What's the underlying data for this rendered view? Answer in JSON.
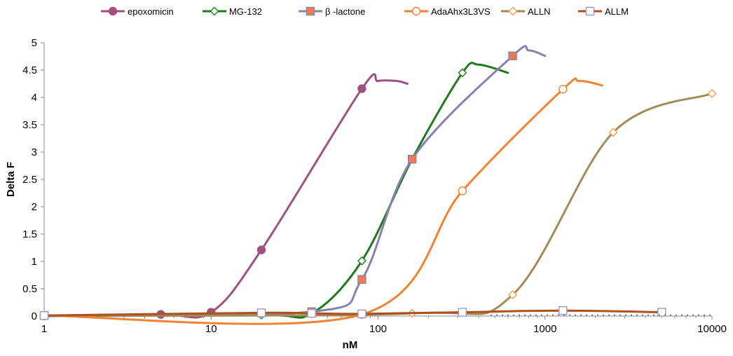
{
  "chart_data": {
    "type": "line",
    "title": "",
    "xlabel": "nM",
    "ylabel": "Delta F",
    "x_scale": "log",
    "xlim": [
      1,
      10000
    ],
    "ylim": [
      0,
      5
    ],
    "x_ticks": [
      1,
      10,
      100,
      1000,
      10000
    ],
    "x_tick_labels": [
      "1",
      "10",
      "100",
      "1000",
      "10000"
    ],
    "y_ticks": [
      0,
      0.5,
      1,
      1.5,
      2,
      2.5,
      3,
      3.5,
      4,
      4.5,
      5
    ],
    "y_tick_labels": [
      "0",
      "0.5",
      "1",
      "1.5",
      "2",
      "2.5",
      "3",
      "3.5",
      "4",
      "4.5",
      "5"
    ],
    "grid": false,
    "legend_position": "top",
    "series": [
      {
        "name": "epoxomicin",
        "color": "#a0517e",
        "marker": "circle",
        "marker_fill": "#a0517e",
        "points": [
          [
            1,
            0.01
          ],
          [
            5,
            0.03
          ],
          [
            10,
            0.07
          ],
          [
            20,
            1.21
          ],
          [
            80,
            4.16
          ]
        ],
        "tail": [
          [
            80,
            4.16
          ],
          [
            100,
            4.3
          ],
          [
            130,
            4.3
          ],
          [
            150,
            4.25
          ]
        ]
      },
      {
        "name": "MG-132",
        "color": "#1f7a1f",
        "marker": "diamond",
        "marker_fill": "#ffffff",
        "points": [
          [
            1,
            0.0
          ],
          [
            20,
            0.02
          ],
          [
            40,
            0.05
          ],
          [
            80,
            1.01
          ],
          [
            160,
            2.87
          ],
          [
            320,
            4.45
          ]
        ],
        "tail": [
          [
            320,
            4.45
          ],
          [
            400,
            4.6
          ],
          [
            600,
            4.45
          ]
        ]
      },
      {
        "name": "β -lactone",
        "color": "#8383ae",
        "marker": "square",
        "marker_fill": "#f47a4d",
        "points": [
          [
            1,
            0.01
          ],
          [
            40,
            0.08
          ],
          [
            80,
            0.67
          ],
          [
            160,
            2.87
          ],
          [
            640,
            4.76
          ]
        ],
        "tail": [
          [
            640,
            4.76
          ],
          [
            800,
            4.86
          ],
          [
            1000,
            4.76
          ]
        ]
      },
      {
        "name": "AdaAhx3L3VS",
        "color": "#f58231",
        "marker": "circle",
        "marker_fill": "#ffffff",
        "points": [
          [
            1,
            0.01
          ],
          [
            80,
            0.03
          ],
          [
            320,
            2.29
          ],
          [
            1280,
            4.15
          ]
        ],
        "tail": [
          [
            1280,
            4.15
          ],
          [
            1600,
            4.3
          ],
          [
            2200,
            4.22
          ]
        ]
      },
      {
        "name": "ALLN",
        "color": "#a38b58",
        "marker": "diamond",
        "marker_fill": "#ffffff",
        "marker_stroke": "#f0a050",
        "points": [
          [
            1,
            0.01
          ],
          [
            160,
            0.05
          ],
          [
            640,
            0.39
          ],
          [
            2560,
            3.36
          ],
          [
            10000,
            4.07
          ]
        ]
      },
      {
        "name": "ALLM",
        "color": "#b0501e",
        "marker": "square",
        "marker_fill": "#ffffff",
        "marker_stroke": "#9a9ac0",
        "points": [
          [
            1,
            0.01
          ],
          [
            20,
            0.06
          ],
          [
            40,
            0.05
          ],
          [
            80,
            0.04
          ],
          [
            320,
            0.07
          ],
          [
            1280,
            0.1
          ],
          [
            5000,
            0.07
          ]
        ]
      }
    ]
  }
}
